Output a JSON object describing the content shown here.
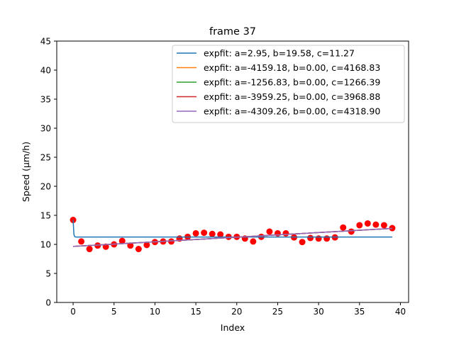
{
  "chart_data": {
    "type": "scatter",
    "title": "frame 37",
    "xlabel": "Index",
    "ylabel": "Speed (μm/h)",
    "xlim": [
      -2,
      41
    ],
    "ylim": [
      0,
      45
    ],
    "xticks": [
      0,
      5,
      10,
      15,
      20,
      25,
      30,
      35,
      40
    ],
    "yticks": [
      0,
      5,
      10,
      15,
      20,
      25,
      30,
      35,
      40,
      45
    ],
    "grid": false,
    "legend_position": "top-right",
    "points": {
      "color": "#ff0000",
      "x": [
        0,
        1,
        2,
        3,
        4,
        5,
        6,
        7,
        8,
        9,
        10,
        11,
        12,
        13,
        14,
        15,
        16,
        17,
        18,
        19,
        20,
        21,
        22,
        23,
        24,
        25,
        26,
        27,
        28,
        29,
        30,
        31,
        32,
        33,
        34,
        35,
        36,
        37,
        38,
        39
      ],
      "y": [
        14.2,
        10.5,
        9.2,
        9.8,
        9.6,
        10.0,
        10.6,
        9.8,
        9.2,
        9.9,
        10.4,
        10.5,
        10.5,
        11.0,
        11.3,
        11.9,
        12.0,
        11.8,
        11.7,
        11.3,
        11.3,
        11.0,
        10.5,
        11.3,
        12.2,
        11.9,
        11.9,
        11.2,
        10.4,
        11.1,
        11.0,
        11.0,
        11.2,
        12.9,
        12.2,
        13.3,
        13.6,
        13.4,
        13.3,
        12.8
      ]
    },
    "series": [
      {
        "name": "expfit: a=2.95, b=19.58, c=11.27",
        "color": "#1f77b4",
        "a": 2.95,
        "b": 19.58,
        "c": 11.27
      },
      {
        "name": "expfit: a=-4159.18, b=0.00, c=4168.83",
        "color": "#ff7f0e",
        "a": -4159.18,
        "b": 0.0,
        "c": 4168.83
      },
      {
        "name": "expfit: a=-1256.83, b=0.00, c=1266.39",
        "color": "#2ca02c",
        "a": -1256.83,
        "b": 0.0,
        "c": 1266.39
      },
      {
        "name": "expfit: a=-3959.25, b=0.00, c=3968.88",
        "color": "#d62728",
        "a": -3959.25,
        "b": 0.0,
        "c": 3968.88
      },
      {
        "name": "expfit: a=-4309.26, b=0.00, c=4318.90",
        "color": "#9467bd",
        "a": -4309.26,
        "b": 0.0,
        "c": 4318.9
      }
    ]
  }
}
